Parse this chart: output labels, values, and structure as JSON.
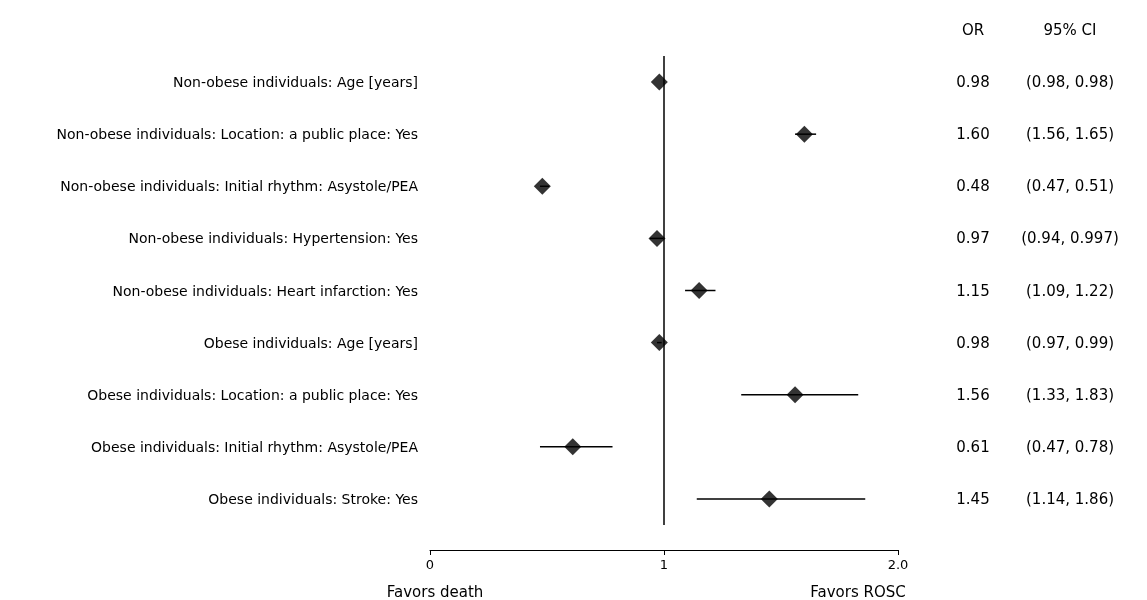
{
  "chart_data": {
    "type": "scatter",
    "orientation": "horizontal",
    "categories": [
      "Non-obese individuals: Age [years]",
      "Non-obese individuals: Location: a public place: Yes",
      "Non-obese individuals: Initial rhythm: Asystole/PEA",
      "Non-obese individuals: Hypertension: Yes",
      "Non-obese individuals: Heart infarction: Yes",
      "Obese individuals: Age [years]",
      "Obese individuals: Location: a public place: Yes",
      "Obese individuals: Initial rhythm: Asystole/PEA",
      "Obese individuals: Stroke: Yes"
    ],
    "values": [
      0.98,
      1.6,
      0.48,
      0.97,
      1.15,
      0.98,
      1.56,
      0.61,
      1.45
    ],
    "errors": [
      [
        0.98,
        0.98
      ],
      [
        1.56,
        1.65
      ],
      [
        0.47,
        0.51
      ],
      [
        0.94,
        0.997
      ],
      [
        1.09,
        1.22
      ],
      [
        0.97,
        0.99
      ],
      [
        1.33,
        1.83
      ],
      [
        0.47,
        0.78
      ],
      [
        1.14,
        1.86
      ]
    ],
    "value_labels": [
      "0.98",
      "1.60",
      "0.48",
      "0.97",
      "1.15",
      "0.98",
      "1.56",
      "0.61",
      "1.45"
    ],
    "annotations": [
      "OR",
      "95% CI",
      "Favors death",
      "Favors ROSC",
      "(0.98, 0.98)",
      "(1.56, 1.65)",
      "(0.47, 0.51)",
      "(0.94, 0.997)",
      "(1.09, 1.22)",
      "(0.97, 0.99)",
      "(1.33, 1.83)",
      "(0.47, 0.78)",
      "(1.14, 1.86)"
    ],
    "color": "#000000",
    "marker": "diamond",
    "xlim": [
      0,
      2
    ],
    "xticks": [
      0,
      1,
      {
        "value": 2,
        "label": "2.0"
      }
    ],
    "ref_lines": [
      {
        "axis": "x",
        "value": 1,
        "color": "#000000"
      }
    ],
    "grid": false
  }
}
